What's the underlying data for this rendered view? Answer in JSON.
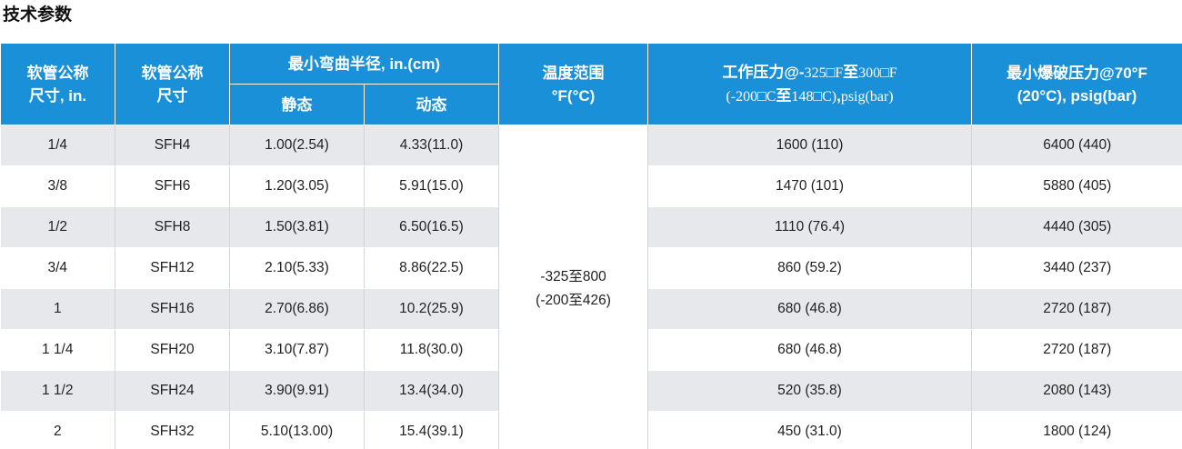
{
  "title": "技术参数",
  "table": {
    "headers": {
      "size_in": [
        "软管公称",
        "尺寸, in."
      ],
      "size": [
        "软管公称",
        "尺寸"
      ],
      "bend_radius": "最小弯曲半径, in.(cm)",
      "static": "静态",
      "dynamic": "动态",
      "temp_range": [
        "温度范围",
        "°F(°C)"
      ],
      "work_pressure": {
        "line1_bold": "工作压力@-",
        "line1_a": "325□F",
        "line1_mid": "至",
        "line1_b": "300□F",
        "line2_a": "(-200□C",
        "line2_mid": "至",
        "line2_b": "148□C)",
        "line2_bold": ",",
        "line2_c": "psig(bar)"
      },
      "burst_pressure": [
        "最小爆破压力@70°F",
        "(20°C), psig(bar)"
      ]
    },
    "temp_value": [
      "-325至800",
      "(-200至426)"
    ],
    "rows": [
      {
        "size_in": "1/4",
        "size": "SFH4",
        "static": "1.00(2.54)",
        "dynamic": "4.33(11.0)",
        "work": "1600 (110)",
        "burst": "6400 (440)"
      },
      {
        "size_in": "3/8",
        "size": "SFH6",
        "static": "1.20(3.05)",
        "dynamic": "5.91(15.0)",
        "work": "1470 (101)",
        "burst": "5880 (405)"
      },
      {
        "size_in": "1/2",
        "size": "SFH8",
        "static": "1.50(3.81)",
        "dynamic": "6.50(16.5)",
        "work": "1110 (76.4)",
        "burst": "4440 (305)"
      },
      {
        "size_in": "3/4",
        "size": "SFH12",
        "static": "2.10(5.33)",
        "dynamic": "8.86(22.5)",
        "work": "860 (59.2)",
        "burst": "3440 (237)"
      },
      {
        "size_in": "1",
        "size": "SFH16",
        "static": "2.70(6.86)",
        "dynamic": "10.2(25.9)",
        "work": "680 (46.8)",
        "burst": "2720 (187)"
      },
      {
        "size_in": "1 1/4",
        "size": "SFH20",
        "static": "3.10(7.87)",
        "dynamic": "11.8(30.0)",
        "work": "680 (46.8)",
        "burst": "2720 (187)"
      },
      {
        "size_in": "1 1/2",
        "size": "SFH24",
        "static": "3.90(9.91)",
        "dynamic": "13.4(34.0)",
        "work": "520 (35.8)",
        "burst": "2080 (143)"
      },
      {
        "size_in": "2",
        "size": "SFH32",
        "static": "5.10(13.00)",
        "dynamic": "15.4(39.1)",
        "work": "450 (31.0)",
        "burst": "1800 (124)"
      }
    ]
  }
}
